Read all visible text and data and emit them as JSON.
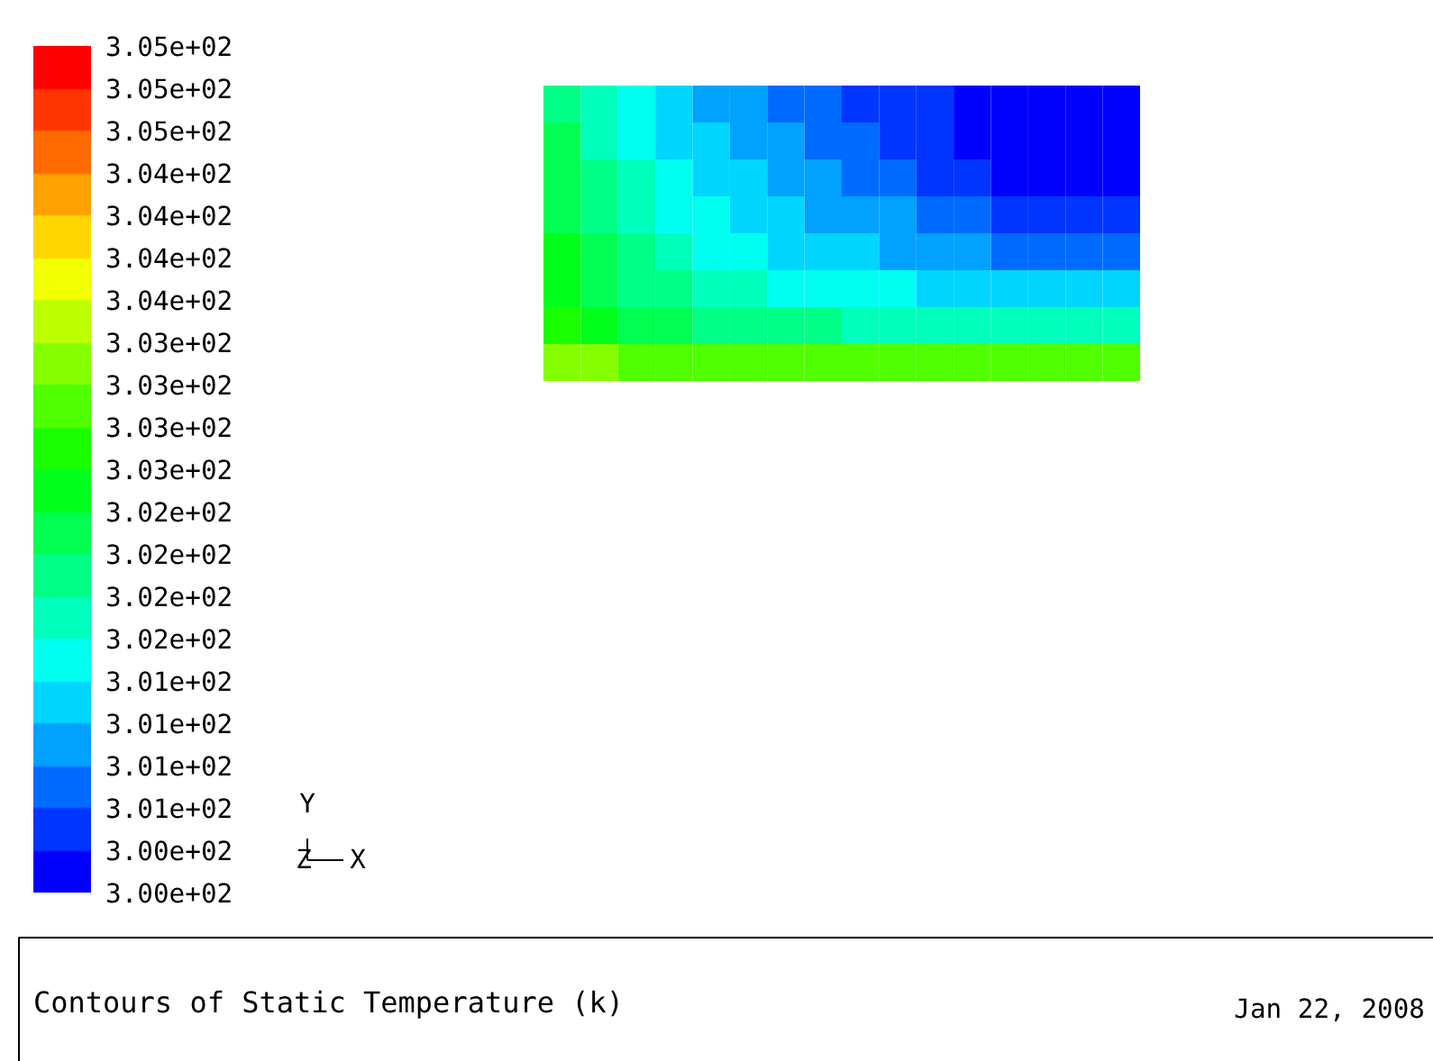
{
  "chart_data": {
    "type": "heatmap",
    "title": "Contours of Static Temperature (k)",
    "annotations": [
      "Y",
      "Z",
      "X",
      "Jan 22, 2008"
    ],
    "categories": [
      null,
      null,
      null,
      null,
      null,
      null,
      null,
      null,
      null,
      null,
      null,
      null,
      null,
      null,
      null,
      null
    ],
    "y_categories": [
      null,
      null,
      null,
      null,
      null,
      null,
      null,
      null
    ],
    "cells": [
      [
        301.875,
        301.625,
        301.375,
        301.125,
        300.875,
        300.875,
        300.625,
        300.625,
        300.375,
        300.375,
        300.375,
        300.125,
        300.125,
        300.125,
        300.125,
        300.125
      ],
      [
        302.125,
        301.625,
        301.375,
        301.125,
        301.125,
        300.875,
        300.875,
        300.625,
        300.625,
        300.375,
        300.375,
        300.125,
        300.125,
        300.125,
        300.125,
        300.125
      ],
      [
        302.125,
        301.875,
        301.625,
        301.375,
        301.125,
        301.125,
        300.875,
        300.875,
        300.625,
        300.625,
        300.375,
        300.375,
        300.125,
        300.125,
        300.125,
        300.125
      ],
      [
        302.125,
        301.875,
        301.625,
        301.375,
        301.375,
        301.125,
        301.125,
        300.875,
        300.875,
        300.875,
        300.625,
        300.625,
        300.375,
        300.375,
        300.375,
        300.375
      ],
      [
        302.375,
        302.125,
        301.875,
        301.625,
        301.375,
        301.375,
        301.125,
        301.125,
        301.125,
        300.875,
        300.875,
        300.875,
        300.625,
        300.625,
        300.625,
        300.625
      ],
      [
        302.375,
        302.125,
        301.875,
        301.875,
        301.625,
        301.625,
        301.375,
        301.375,
        301.375,
        301.375,
        301.125,
        301.125,
        301.125,
        301.125,
        301.125,
        301.125
      ],
      [
        302.625,
        302.375,
        302.125,
        302.125,
        301.875,
        301.875,
        301.875,
        301.875,
        301.625,
        301.625,
        301.625,
        301.625,
        301.625,
        301.625,
        301.625,
        301.625
      ],
      [
        303.125,
        303.125,
        302.875,
        302.875,
        302.875,
        302.875,
        302.875,
        302.875,
        302.875,
        302.875,
        302.875,
        302.875,
        302.875,
        302.875,
        302.875,
        302.875
      ]
    ],
    "clim": [
      300,
      305
    ],
    "cticks": [
      {
        "value": 300.0,
        "label": "3.00e+02"
      },
      {
        "value": 300.25,
        "label": "3.00e+02"
      },
      {
        "value": 300.5,
        "label": "3.01e+02"
      },
      {
        "value": 300.75,
        "label": "3.01e+02"
      },
      {
        "value": 301.0,
        "label": "3.01e+02"
      },
      {
        "value": 301.25,
        "label": "3.01e+02"
      },
      {
        "value": 301.5,
        "label": "3.02e+02"
      },
      {
        "value": 301.75,
        "label": "3.02e+02"
      },
      {
        "value": 302.0,
        "label": "3.02e+02"
      },
      {
        "value": 302.25,
        "label": "3.02e+02"
      },
      {
        "value": 302.5,
        "label": "3.03e+02"
      },
      {
        "value": 302.75,
        "label": "3.03e+02"
      },
      {
        "value": 303.0,
        "label": "3.03e+02"
      },
      {
        "value": 303.25,
        "label": "3.03e+02"
      },
      {
        "value": 303.5,
        "label": "3.04e+02"
      },
      {
        "value": 303.75,
        "label": "3.04e+02"
      },
      {
        "value": 304.0,
        "label": "3.04e+02"
      },
      {
        "value": 304.25,
        "label": "3.04e+02"
      },
      {
        "value": 304.5,
        "label": "3.05e+02"
      },
      {
        "value": 304.75,
        "label": "3.05e+02"
      },
      {
        "value": 305.0,
        "label": "3.05e+02"
      }
    ]
  }
}
